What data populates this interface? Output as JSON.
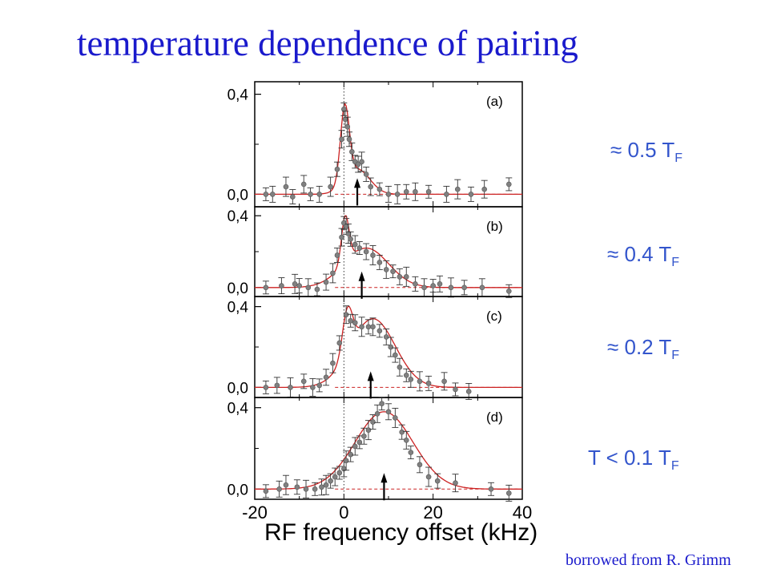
{
  "slide": {
    "title": "temperature dependence of pairing",
    "credit": "borrowed from R. Grimm"
  },
  "temperature_labels": [
    {
      "prefix": "≈ 0.5 T",
      "sub": "F"
    },
    {
      "prefix": "≈ 0.4 T",
      "sub": "F"
    },
    {
      "prefix": "≈ 0.2 T",
      "sub": "F"
    },
    {
      "prefix": "T < 0.1 T",
      "sub": "F"
    }
  ],
  "chart_data": {
    "type": "scatter",
    "xlabel": "RF frequency offset (kHz)",
    "xlim": [
      -20,
      40
    ],
    "xticks": [
      "-20",
      "0",
      "20",
      "40"
    ],
    "ylim": [
      -0.05,
      0.45
    ],
    "yticks": [
      "0,0",
      "0,4"
    ],
    "panels": [
      {
        "label": "(a)",
        "arrow_x": 3,
        "fit": {
          "x0": 0.2,
          "A": 0.3,
          "w": 1.4,
          "B": 0.1,
          "mu": 3.0,
          "s": 2.8
        },
        "points": [
          [
            -17.5,
            0.0
          ],
          [
            -16,
            0.0
          ],
          [
            -13,
            0.03
          ],
          [
            -11.5,
            -0.01
          ],
          [
            -9,
            0.04
          ],
          [
            -7.5,
            0.0
          ],
          [
            -5.5,
            0.0
          ],
          [
            -3,
            0.03
          ],
          [
            -1.5,
            0.1
          ],
          [
            -0.5,
            0.22
          ],
          [
            0,
            0.34
          ],
          [
            0.3,
            0.3
          ],
          [
            0.8,
            0.27
          ],
          [
            1.2,
            0.22
          ],
          [
            1.8,
            0.17
          ],
          [
            2.5,
            0.13
          ],
          [
            3.2,
            0.12
          ],
          [
            4,
            0.13
          ],
          [
            5,
            0.08
          ],
          [
            6,
            0.03
          ],
          [
            8,
            0.02
          ],
          [
            10,
            0.0
          ],
          [
            12,
            0.0
          ],
          [
            14,
            0.01
          ],
          [
            16,
            0.01
          ],
          [
            19,
            0.01
          ],
          [
            23,
            0.0
          ],
          [
            25.5,
            0.02
          ],
          [
            28.5,
            0.0
          ],
          [
            31.5,
            0.02
          ],
          [
            37,
            0.04
          ]
        ]
      },
      {
        "label": "(b)",
        "arrow_x": 4,
        "fit": {
          "x0": 0.3,
          "A": 0.26,
          "w": 1.2,
          "B": 0.22,
          "mu": 5.0,
          "s": 5.0
        },
        "points": [
          [
            -17.5,
            0.0
          ],
          [
            -14,
            0.01
          ],
          [
            -11,
            0.02
          ],
          [
            -10,
            0.01
          ],
          [
            -8,
            0.0
          ],
          [
            -6,
            -0.01
          ],
          [
            -4,
            0.03
          ],
          [
            -2.5,
            0.08
          ],
          [
            -1.5,
            0.18
          ],
          [
            -0.5,
            0.28
          ],
          [
            0,
            0.36
          ],
          [
            0.5,
            0.34
          ],
          [
            1,
            0.3
          ],
          [
            1.5,
            0.27
          ],
          [
            2.5,
            0.24
          ],
          [
            3.5,
            0.22
          ],
          [
            5,
            0.2
          ],
          [
            6.5,
            0.18
          ],
          [
            8,
            0.14
          ],
          [
            9.5,
            0.1
          ],
          [
            11,
            0.09
          ],
          [
            12.5,
            0.06
          ],
          [
            14,
            0.06
          ],
          [
            16,
            0.02
          ],
          [
            18,
            0.0
          ],
          [
            20,
            0.01
          ],
          [
            21.5,
            0.02
          ],
          [
            24,
            0.0
          ],
          [
            27,
            0.0
          ],
          [
            31,
            0.0
          ],
          [
            37,
            -0.02
          ]
        ]
      },
      {
        "label": "(c)",
        "arrow_x": 6,
        "fit": {
          "x0": 0.8,
          "A": 0.22,
          "w": 1.6,
          "B": 0.34,
          "mu": 6.5,
          "s": 5.0
        },
        "points": [
          [
            -17.5,
            0.0
          ],
          [
            -15,
            0.01
          ],
          [
            -12,
            0.0
          ],
          [
            -9,
            0.03
          ],
          [
            -7,
            0.0
          ],
          [
            -5.5,
            0.01
          ],
          [
            -4,
            0.05
          ],
          [
            -2.5,
            0.12
          ],
          [
            -1,
            0.22
          ],
          [
            0.5,
            0.36
          ],
          [
            1.5,
            0.33
          ],
          [
            2.5,
            0.32
          ],
          [
            4,
            0.3
          ],
          [
            5.5,
            0.3
          ],
          [
            6.5,
            0.3
          ],
          [
            8,
            0.28
          ],
          [
            9.5,
            0.25
          ],
          [
            10.5,
            0.2
          ],
          [
            11.5,
            0.16
          ],
          [
            12.5,
            0.1
          ],
          [
            14,
            0.06
          ],
          [
            15,
            0.04
          ],
          [
            17,
            0.03
          ],
          [
            19,
            0.02
          ],
          [
            22.5,
            0.03
          ],
          [
            25,
            -0.01
          ],
          [
            28,
            -0.02
          ]
        ]
      },
      {
        "label": "(d)",
        "arrow_x": 9,
        "fit": {
          "x0": 9,
          "A": 0,
          "w": 1,
          "B": 0.38,
          "mu": 9.0,
          "s": 6.5
        },
        "points": [
          [
            -17.5,
            -0.01
          ],
          [
            -14.5,
            0.0
          ],
          [
            -13,
            0.02
          ],
          [
            -10.5,
            0.01
          ],
          [
            -8.5,
            0.0
          ],
          [
            -6.5,
            0.0
          ],
          [
            -5,
            0.01
          ],
          [
            -4,
            0.02
          ],
          [
            -3,
            0.04
          ],
          [
            -2,
            0.06
          ],
          [
            -1,
            0.08
          ],
          [
            0,
            0.1
          ],
          [
            0.5,
            0.14
          ],
          [
            1.5,
            0.17
          ],
          [
            2.5,
            0.21
          ],
          [
            3.5,
            0.23
          ],
          [
            4.5,
            0.26
          ],
          [
            5.5,
            0.29
          ],
          [
            6.5,
            0.33
          ],
          [
            7.5,
            0.37
          ],
          [
            8.5,
            0.42
          ],
          [
            10,
            0.38
          ],
          [
            11.5,
            0.35
          ],
          [
            13,
            0.28
          ],
          [
            14,
            0.24
          ],
          [
            15,
            0.18
          ],
          [
            17,
            0.12
          ],
          [
            19,
            0.06
          ],
          [
            21,
            0.04
          ],
          [
            25,
            0.03
          ],
          [
            33,
            0.0
          ],
          [
            37,
            -0.02
          ]
        ]
      }
    ]
  }
}
